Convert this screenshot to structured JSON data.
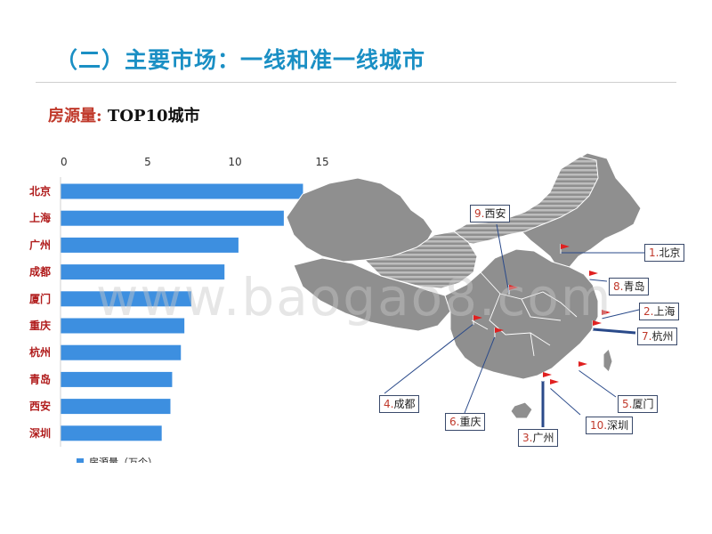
{
  "page": {
    "title": "（二）主要市场：一线和准一线城市",
    "subtitle_lead": "房源量:",
    "subtitle_rest": " TOP10城市",
    "watermark": "www.baogao8.com"
  },
  "chart_data": {
    "type": "bar",
    "orientation": "horizontal",
    "categories": [
      "北京",
      "上海",
      "广州",
      "成都",
      "厦门",
      "重庆",
      "杭州",
      "青岛",
      "西安",
      "深圳"
    ],
    "series": [
      {
        "name": "房源量（万个）",
        "values": [
          13.9,
          12.8,
          10.2,
          9.4,
          7.5,
          7.1,
          6.9,
          6.4,
          6.3,
          5.8
        ],
        "color": "#3d8fe0"
      }
    ],
    "xticks": [
      0,
      5,
      10,
      15
    ],
    "xlim": [
      0,
      15
    ],
    "axis_position": "top",
    "legend_position": "bottom-left",
    "grid": false
  },
  "map": {
    "colors": {
      "land": "#8f8f8f",
      "border": "#ffffff",
      "stripes": "#b5b5b5",
      "flag": "#e02020",
      "line": "#2a4a8a"
    },
    "callouts": [
      {
        "num": "9.",
        "name": "西安"
      },
      {
        "num": "1.",
        "name": "北京"
      },
      {
        "num": "8.",
        "name": "青岛"
      },
      {
        "num": "2.",
        "name": "上海"
      },
      {
        "num": "7.",
        "name": "杭州"
      },
      {
        "num": "4.",
        "name": "成都"
      },
      {
        "num": "5.",
        "name": "厦门"
      },
      {
        "num": "6.",
        "name": "重庆"
      },
      {
        "num": "10.",
        "name": "深圳"
      },
      {
        "num": "3.",
        "name": "广州"
      }
    ]
  }
}
